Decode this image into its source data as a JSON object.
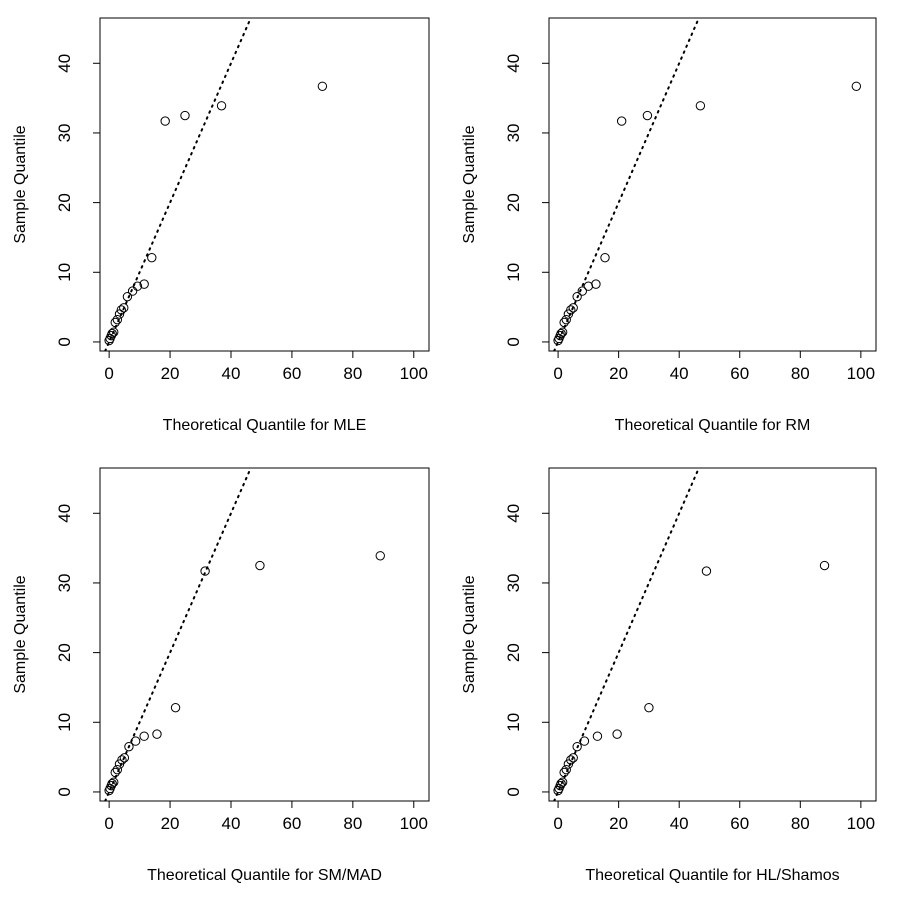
{
  "chart_data": [
    {
      "type": "scatter",
      "title": "",
      "xlabel": "Theoretical Quantile for MLE",
      "ylabel": "Sample Quantile",
      "xlim": [
        -3,
        105
      ],
      "ylim": [
        -1.3,
        46.5
      ],
      "xticks": [
        0,
        20,
        40,
        60,
        80,
        100
      ],
      "yticks": [
        0,
        10,
        20,
        30,
        40
      ],
      "xtick_labels": [
        "0",
        "20",
        "40",
        "60",
        "80",
        "100"
      ],
      "ytick_labels": [
        "0",
        "10",
        "20",
        "30",
        "40"
      ],
      "reference_line": {
        "slope": 1.0,
        "intercept": 0,
        "style": "dotted"
      },
      "points": [
        {
          "x": 0.0,
          "y": 0.2
        },
        {
          "x": 0.3,
          "y": 0.5
        },
        {
          "x": 0.7,
          "y": 0.9
        },
        {
          "x": 1.0,
          "y": 1.2
        },
        {
          "x": 1.5,
          "y": 1.4
        },
        {
          "x": 2.0,
          "y": 2.8
        },
        {
          "x": 2.7,
          "y": 3.2
        },
        {
          "x": 3.4,
          "y": 4.0
        },
        {
          "x": 4.0,
          "y": 4.6
        },
        {
          "x": 4.8,
          "y": 4.9
        },
        {
          "x": 6.0,
          "y": 6.5
        },
        {
          "x": 7.7,
          "y": 7.3
        },
        {
          "x": 9.3,
          "y": 8.0
        },
        {
          "x": 11.5,
          "y": 8.3
        },
        {
          "x": 14.0,
          "y": 12.1
        },
        {
          "x": 18.4,
          "y": 31.7
        },
        {
          "x": 24.9,
          "y": 32.5
        },
        {
          "x": 36.9,
          "y": 33.9
        },
        {
          "x": 70.0,
          "y": 36.7
        }
      ]
    },
    {
      "type": "scatter",
      "title": "",
      "xlabel": "Theoretical Quantile for RM",
      "ylabel": "Sample Quantile",
      "xlim": [
        -3,
        105
      ],
      "ylim": [
        -1.3,
        46.5
      ],
      "xticks": [
        0,
        20,
        40,
        60,
        80,
        100
      ],
      "yticks": [
        0,
        10,
        20,
        30,
        40
      ],
      "xtick_labels": [
        "0",
        "20",
        "40",
        "60",
        "80",
        "100"
      ],
      "ytick_labels": [
        "0",
        "10",
        "20",
        "30",
        "40"
      ],
      "reference_line": {
        "slope": 1.0,
        "intercept": 0,
        "style": "dotted"
      },
      "points": [
        {
          "x": 0.0,
          "y": 0.2
        },
        {
          "x": 0.3,
          "y": 0.5
        },
        {
          "x": 0.7,
          "y": 0.9
        },
        {
          "x": 1.0,
          "y": 1.2
        },
        {
          "x": 1.5,
          "y": 1.4
        },
        {
          "x": 2.0,
          "y": 2.8
        },
        {
          "x": 2.7,
          "y": 3.2
        },
        {
          "x": 3.4,
          "y": 4.0
        },
        {
          "x": 4.2,
          "y": 4.6
        },
        {
          "x": 5.0,
          "y": 4.9
        },
        {
          "x": 6.3,
          "y": 6.5
        },
        {
          "x": 8.0,
          "y": 7.3
        },
        {
          "x": 10.0,
          "y": 8.0
        },
        {
          "x": 12.5,
          "y": 8.3
        },
        {
          "x": 15.5,
          "y": 12.1
        },
        {
          "x": 21.0,
          "y": 31.7
        },
        {
          "x": 29.5,
          "y": 32.5
        },
        {
          "x": 47.0,
          "y": 33.9
        },
        {
          "x": 98.5,
          "y": 36.7
        }
      ]
    },
    {
      "type": "scatter",
      "title": "",
      "xlabel": "Theoretical Quantile for SM/MAD",
      "ylabel": "Sample Quantile",
      "xlim": [
        -3,
        105
      ],
      "ylim": [
        -1.3,
        46.5
      ],
      "xticks": [
        0,
        20,
        40,
        60,
        80,
        100
      ],
      "yticks": [
        0,
        10,
        20,
        30,
        40
      ],
      "xtick_labels": [
        "0",
        "20",
        "40",
        "60",
        "80",
        "100"
      ],
      "ytick_labels": [
        "0",
        "10",
        "20",
        "30",
        "40"
      ],
      "reference_line": {
        "slope": 1.0,
        "intercept": 0,
        "style": "dotted"
      },
      "points": [
        {
          "x": 0.0,
          "y": 0.2
        },
        {
          "x": 0.3,
          "y": 0.5
        },
        {
          "x": 0.7,
          "y": 0.9
        },
        {
          "x": 1.0,
          "y": 1.2
        },
        {
          "x": 1.5,
          "y": 1.4
        },
        {
          "x": 2.0,
          "y": 2.8
        },
        {
          "x": 2.7,
          "y": 3.2
        },
        {
          "x": 3.4,
          "y": 4.0
        },
        {
          "x": 4.2,
          "y": 4.6
        },
        {
          "x": 5.0,
          "y": 4.9
        },
        {
          "x": 6.5,
          "y": 6.5
        },
        {
          "x": 8.7,
          "y": 7.3
        },
        {
          "x": 11.5,
          "y": 8.0
        },
        {
          "x": 15.7,
          "y": 8.3
        },
        {
          "x": 21.8,
          "y": 12.1
        },
        {
          "x": 31.5,
          "y": 31.7
        },
        {
          "x": 49.5,
          "y": 32.5
        },
        {
          "x": 89.0,
          "y": 33.9
        }
      ]
    },
    {
      "type": "scatter",
      "title": "",
      "xlabel": "Theoretical Quantile for HL/Shamos",
      "ylabel": "Sample Quantile",
      "xlim": [
        -3,
        105
      ],
      "ylim": [
        -1.3,
        46.5
      ],
      "xticks": [
        0,
        20,
        40,
        60,
        80,
        100
      ],
      "yticks": [
        0,
        10,
        20,
        30,
        40
      ],
      "xtick_labels": [
        "0",
        "20",
        "40",
        "60",
        "80",
        "100"
      ],
      "ytick_labels": [
        "0",
        "10",
        "20",
        "30",
        "40"
      ],
      "reference_line": {
        "slope": 1.0,
        "intercept": 0,
        "style": "dotted"
      },
      "points": [
        {
          "x": 0.0,
          "y": 0.2
        },
        {
          "x": 0.3,
          "y": 0.5
        },
        {
          "x": 0.7,
          "y": 0.9
        },
        {
          "x": 1.0,
          "y": 1.2
        },
        {
          "x": 1.5,
          "y": 1.4
        },
        {
          "x": 2.0,
          "y": 2.8
        },
        {
          "x": 2.7,
          "y": 3.2
        },
        {
          "x": 3.4,
          "y": 4.0
        },
        {
          "x": 4.2,
          "y": 4.6
        },
        {
          "x": 5.0,
          "y": 4.9
        },
        {
          "x": 6.3,
          "y": 6.5
        },
        {
          "x": 8.7,
          "y": 7.3
        },
        {
          "x": 13.0,
          "y": 8.0
        },
        {
          "x": 19.5,
          "y": 8.3
        },
        {
          "x": 30.0,
          "y": 12.1
        },
        {
          "x": 49.0,
          "y": 31.7
        },
        {
          "x": 88.0,
          "y": 32.5
        }
      ]
    }
  ]
}
